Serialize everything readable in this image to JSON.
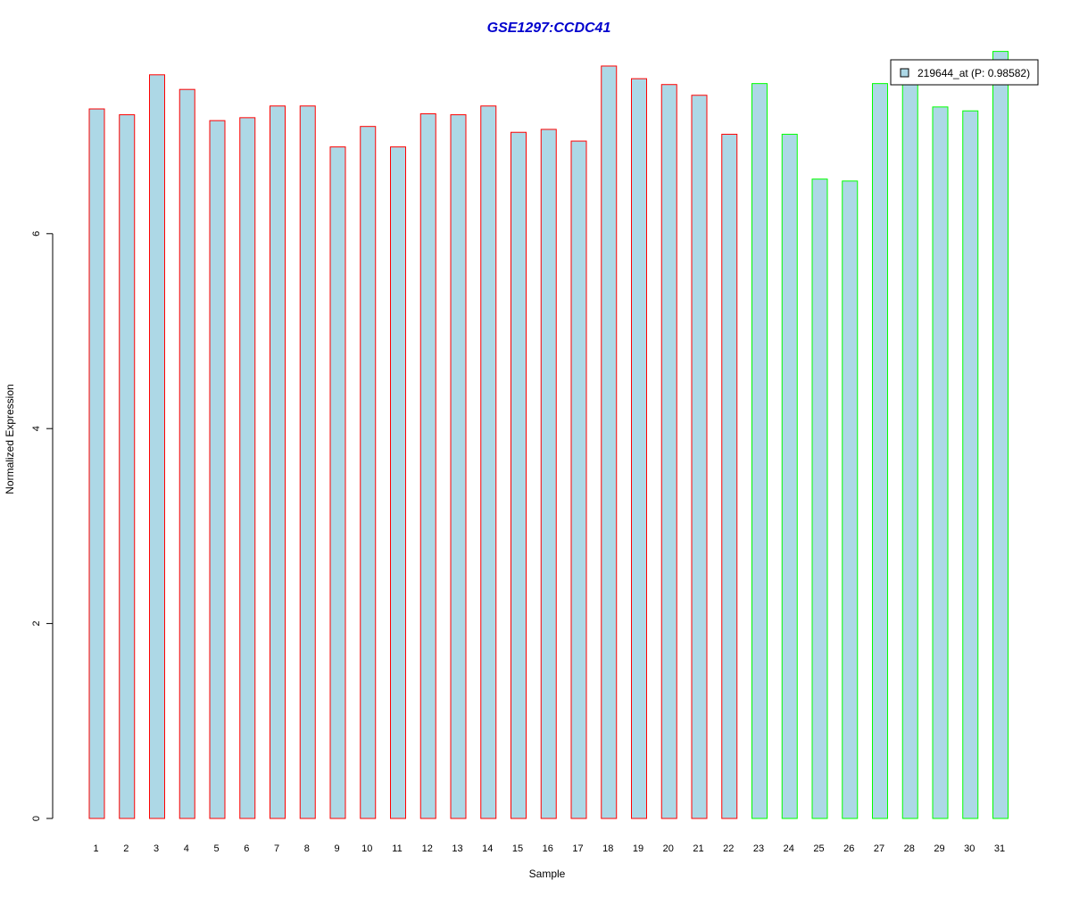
{
  "chart_data": {
    "type": "bar",
    "title": "GSE1297:CCDC41",
    "xlabel": "Sample",
    "ylabel": "Normalized Expression",
    "categories": [
      "1",
      "2",
      "3",
      "4",
      "5",
      "6",
      "7",
      "8",
      "9",
      "10",
      "11",
      "12",
      "13",
      "14",
      "15",
      "16",
      "17",
      "18",
      "19",
      "20",
      "21",
      "22",
      "23",
      "24",
      "25",
      "26",
      "27",
      "28",
      "29",
      "30",
      "31"
    ],
    "series": [
      {
        "name": "219644_at (P: 0.98582)",
        "values": [
          7.28,
          7.22,
          7.63,
          7.48,
          7.16,
          7.19,
          7.31,
          7.31,
          6.89,
          7.1,
          6.89,
          7.23,
          7.22,
          7.31,
          7.04,
          7.07,
          6.95,
          7.72,
          7.59,
          7.53,
          7.42,
          7.02,
          7.54,
          7.02,
          6.56,
          6.54,
          7.54,
          7.54,
          7.3,
          7.26,
          7.87
        ]
      }
    ],
    "groups": [
      1,
      1,
      1,
      1,
      1,
      1,
      1,
      1,
      1,
      1,
      1,
      1,
      1,
      1,
      1,
      1,
      1,
      1,
      1,
      1,
      1,
      1,
      2,
      2,
      2,
      2,
      2,
      2,
      2,
      2,
      2
    ],
    "yticks": [
      0,
      2,
      4,
      6
    ],
    "ylim": [
      0,
      7.9
    ],
    "grid": false,
    "legend_position": "top-right",
    "colors": {
      "bar_fill": "#add8e6",
      "group1_border": "#ff0000",
      "group2_border": "#00ff00",
      "title": "#0000cd",
      "axis": "#000000"
    }
  }
}
